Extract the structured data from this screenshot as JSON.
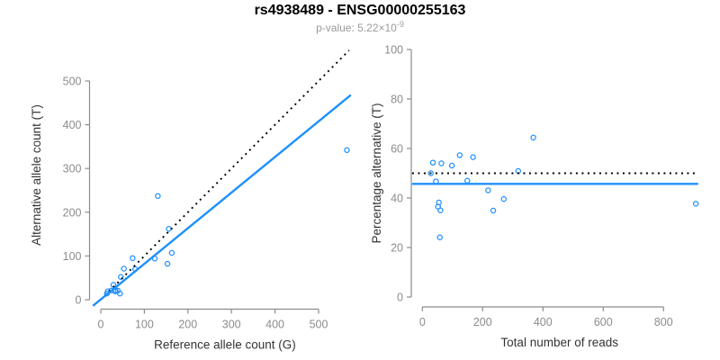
{
  "title": "rs4938489 - ENSG00000255163",
  "subtitle": {
    "text": "p-value: 5.22×10",
    "exponent": "-9"
  },
  "colors": {
    "accent": "#1E90FF",
    "axis": "#8C8C8C",
    "tick_label": "#8C8C8C",
    "axis_title": "#333333",
    "title": "#000000",
    "subtitle": "#9A9A9A"
  },
  "chart_data": [
    {
      "type": "scatter",
      "position": "left",
      "xlabel": "Reference allele count (G)",
      "ylabel": "Alternative allele count (T)",
      "xticks": [
        0,
        100,
        200,
        300,
        400,
        500
      ],
      "yticks": [
        0,
        100,
        200,
        300,
        400,
        500
      ],
      "xlim": [
        -23,
        593
      ],
      "ylim": [
        -23,
        593
      ],
      "grid": false,
      "x_field": "ref",
      "y_field": "alt",
      "lines": [
        {
          "name": "identity-line",
          "style": "dotted",
          "color": "black",
          "x1": 0,
          "y1": 0,
          "x2": 570,
          "y2": 570
        },
        {
          "name": "fit-line",
          "style": "solid",
          "color": "accent",
          "x1": -18,
          "y1": -14,
          "x2": 574,
          "y2": 468
        }
      ]
    },
    {
      "type": "scatter",
      "position": "right",
      "xlabel": "Total number of reads",
      "ylabel": "Percentage alternative (T)",
      "xticks": [
        0,
        200,
        400,
        600,
        800
      ],
      "yticks": [
        0,
        20,
        40,
        60,
        80,
        100
      ],
      "xlim": [
        -36,
        946
      ],
      "ylim": [
        -4,
        104
      ],
      "grid": false,
      "x_field": "total",
      "y_field": "pct",
      "lines": [
        {
          "name": "null-50pct-line",
          "style": "dotted",
          "color": "black",
          "x1": -34,
          "y1": 50,
          "x2": 912,
          "y2": 50
        },
        {
          "name": "mean-pct-line",
          "style": "solid",
          "color": "accent",
          "x1": -34,
          "y1": 45.7,
          "x2": 915,
          "y2": 45.7
        }
      ]
    }
  ],
  "samples": [
    {
      "ref": 14,
      "alt": 14,
      "total": 28,
      "pct": 50.0
    },
    {
      "ref": 16,
      "alt": 19,
      "total": 35,
      "pct": 54.3
    },
    {
      "ref": 24,
      "alt": 21,
      "total": 45,
      "pct": 46.7
    },
    {
      "ref": 29,
      "alt": 34,
      "total": 63,
      "pct": 54.0
    },
    {
      "ref": 34,
      "alt": 21,
      "total": 55,
      "pct": 38.2
    },
    {
      "ref": 33,
      "alt": 19,
      "total": 52,
      "pct": 36.5
    },
    {
      "ref": 39,
      "alt": 21,
      "total": 60,
      "pct": 35.0
    },
    {
      "ref": 44,
      "alt": 14,
      "total": 58,
      "pct": 24.1
    },
    {
      "ref": 46,
      "alt": 52,
      "total": 98,
      "pct": 53.1
    },
    {
      "ref": 53,
      "alt": 71,
      "total": 124,
      "pct": 57.3
    },
    {
      "ref": 73,
      "alt": 95,
      "total": 168,
      "pct": 56.5
    },
    {
      "ref": 79,
      "alt": 70,
      "total": 149,
      "pct": 47.0
    },
    {
      "ref": 124,
      "alt": 94,
      "total": 218,
      "pct": 43.1
    },
    {
      "ref": 131,
      "alt": 237,
      "total": 368,
      "pct": 64.4
    },
    {
      "ref": 153,
      "alt": 82,
      "total": 235,
      "pct": 34.9
    },
    {
      "ref": 156,
      "alt": 162,
      "total": 318,
      "pct": 50.9
    },
    {
      "ref": 163,
      "alt": 107,
      "total": 270,
      "pct": 39.6
    },
    {
      "ref": 565,
      "alt": 342,
      "total": 907,
      "pct": 37.7
    }
  ]
}
